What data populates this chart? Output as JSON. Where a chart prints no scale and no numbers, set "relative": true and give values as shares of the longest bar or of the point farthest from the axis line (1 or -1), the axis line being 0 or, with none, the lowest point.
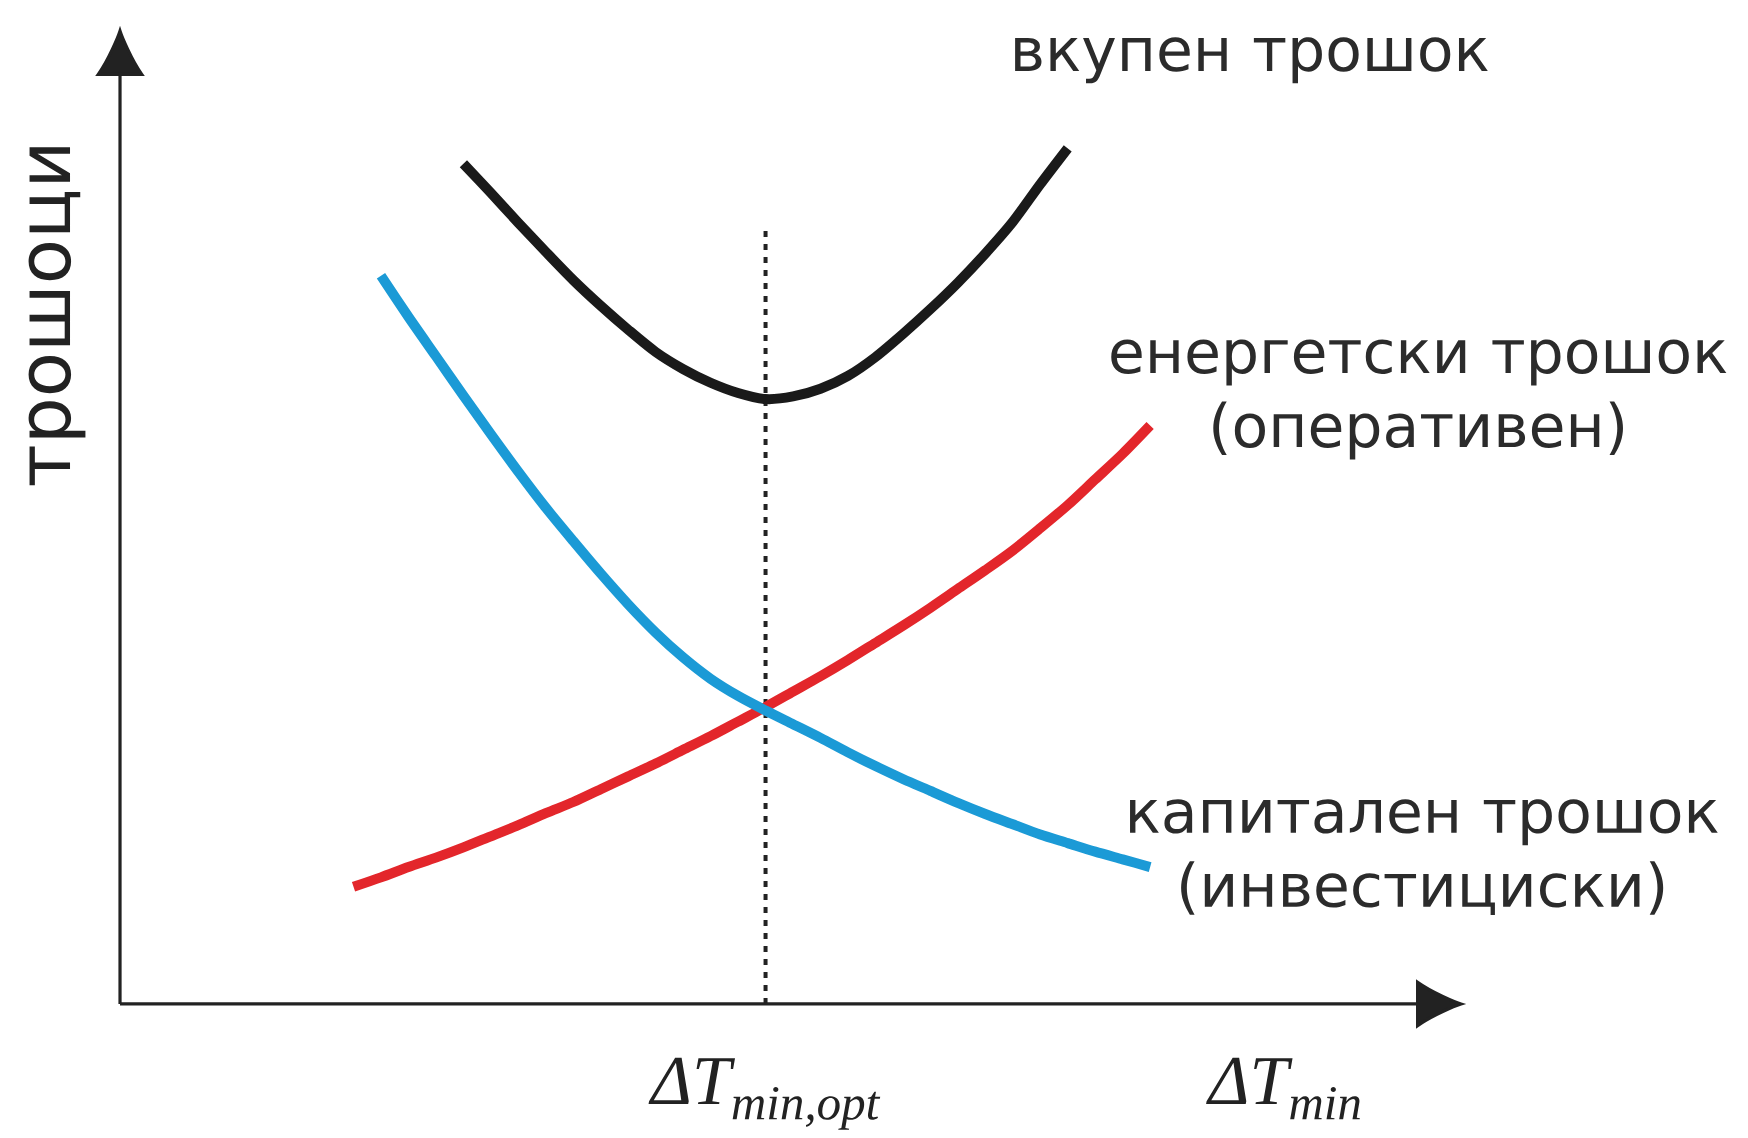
{
  "chart_data": {
    "type": "line",
    "relative": true,
    "line_style": "solid",
    "ylabel": "трошоци",
    "xlabel": "ΔT$_{min}$",
    "categories": [
      null,
      null,
      null,
      null,
      null,
      null,
      null,
      null,
      null,
      null,
      null,
      null,
      null,
      null,
      null,
      null,
      null,
      null,
      null,
      null,
      null,
      null,
      null,
      null,
      null,
      null,
      null,
      null,
      null,
      null,
      null,
      null,
      null,
      null,
      null,
      null,
      null,
      null,
      null,
      null,
      null,
      null,
      null,
      null,
      null,
      null,
      null,
      null,
      null
    ],
    "series": [
      {
        "name": "вкупен трошок",
        "color": "#1a1a1a",
        "values": [
          null,
          null,
          null,
          null,
          null,
          null,
          null,
          null,
          null,
          null,
          null,
          null,
          0.982,
          0.948,
          0.913,
          0.879,
          0.846,
          0.816,
          0.788,
          0.762,
          0.742,
          0.726,
          0.714,
          0.707,
          0.71,
          0.719,
          0.734,
          0.756,
          0.783,
          0.812,
          0.843,
          0.877,
          0.914,
          0.958,
          1.0,
          null,
          null,
          null,
          null,
          null,
          null,
          null,
          null,
          null,
          null,
          null,
          null,
          null,
          null
        ]
      },
      {
        "name": "енергетски трошок (оперативен)",
        "color": "#e3262b",
        "values": [
          null,
          null,
          null,
          null,
          null,
          null,
          null,
          null,
          0.137,
          0.148,
          0.16,
          0.171,
          0.183,
          0.196,
          0.209,
          0.223,
          0.236,
          0.251,
          0.266,
          0.281,
          0.297,
          0.313,
          0.33,
          0.347,
          0.365,
          0.383,
          0.402,
          0.422,
          0.442,
          0.463,
          0.485,
          0.507,
          0.53,
          0.556,
          0.583,
          0.613,
          0.643,
          0.676,
          null,
          null,
          null,
          null,
          null,
          null,
          null,
          null,
          null,
          null,
          null
        ]
      },
      {
        "name": "капитален трошок (инвестициски)",
        "color": "#1b9ad6",
        "values": [
          null,
          null,
          null,
          null,
          null,
          null,
          null,
          null,
          null,
          0.851,
          0.803,
          0.757,
          0.711,
          0.666,
          0.622,
          0.58,
          0.541,
          0.503,
          0.467,
          0.434,
          0.405,
          0.38,
          0.36,
          0.343,
          0.327,
          0.311,
          0.294,
          0.278,
          0.263,
          0.249,
          0.235,
          0.222,
          0.21,
          0.198,
          0.188,
          0.178,
          0.169,
          0.16,
          null,
          null,
          null,
          null,
          null,
          null,
          null,
          null,
          null,
          null,
          null
        ]
      }
    ],
    "annotations": [
      "ΔT$_{min,opt}$"
    ]
  }
}
